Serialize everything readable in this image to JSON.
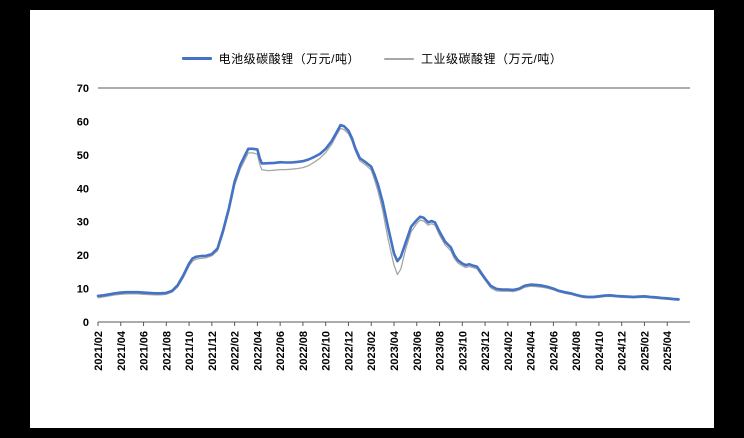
{
  "chart_data": {
    "type": "line",
    "title": "",
    "xlabel": "",
    "ylabel": "",
    "grid": false,
    "legend_position": "top",
    "ylim": [
      0,
      70
    ],
    "yticks": [
      0,
      10,
      20,
      30,
      40,
      50,
      60,
      70
    ],
    "xlim": [
      0,
      52
    ],
    "xtick_positions": [
      0,
      2,
      4,
      6,
      8,
      10,
      12,
      14,
      16,
      18,
      20,
      22,
      24,
      26,
      28,
      30,
      32,
      34,
      36,
      38,
      40,
      42,
      44,
      46,
      48,
      50
    ],
    "xtick_labels": [
      "2021/02",
      "2021/04",
      "2021/06",
      "2021/08",
      "2021/10",
      "2021/12",
      "2022/02",
      "2022/04",
      "2022/06",
      "2022/08",
      "2022/10",
      "2022/12",
      "2023/02",
      "2023/04",
      "2023/06",
      "2023/08",
      "2023/10",
      "2023/12",
      "2024/02",
      "2024/04",
      "2024/06",
      "2024/08",
      "2024/10",
      "2024/12",
      "2025/02",
      "2025/04"
    ],
    "x_unit": "months_since_2021_02",
    "y_unit": "万元/吨",
    "series": [
      {
        "name": "电池级碳酸锂（万元/吨）",
        "color": "#4472c4",
        "width": 2.6,
        "points": [
          [
            0,
            7.8
          ],
          [
            0.5,
            8.0
          ],
          [
            1,
            8.3
          ],
          [
            1.5,
            8.6
          ],
          [
            2,
            8.8
          ],
          [
            2.5,
            8.9
          ],
          [
            3,
            8.9
          ],
          [
            3.5,
            8.9
          ],
          [
            4,
            8.8
          ],
          [
            4.5,
            8.7
          ],
          [
            5,
            8.6
          ],
          [
            5.5,
            8.6
          ],
          [
            6,
            8.7
          ],
          [
            6.5,
            9.3
          ],
          [
            7,
            11.0
          ],
          [
            7.5,
            14.0
          ],
          [
            8,
            17.5
          ],
          [
            8.3,
            19.0
          ],
          [
            8.6,
            19.5
          ],
          [
            9,
            19.7
          ],
          [
            9.5,
            19.8
          ],
          [
            10,
            20.3
          ],
          [
            10.5,
            22.0
          ],
          [
            11,
            27.5
          ],
          [
            11.5,
            34.0
          ],
          [
            12,
            42.0
          ],
          [
            12.5,
            47.0
          ],
          [
            13,
            50.5
          ],
          [
            13.2,
            51.8
          ],
          [
            13.6,
            51.8
          ],
          [
            14,
            51.6
          ],
          [
            14.2,
            49.0
          ],
          [
            14.4,
            47.4
          ],
          [
            15,
            47.5
          ],
          [
            15.5,
            47.6
          ],
          [
            16,
            47.8
          ],
          [
            16.5,
            47.7
          ],
          [
            17,
            47.7
          ],
          [
            17.5,
            47.9
          ],
          [
            18,
            48.1
          ],
          [
            18.5,
            48.6
          ],
          [
            19,
            49.4
          ],
          [
            19.5,
            50.3
          ],
          [
            20,
            51.8
          ],
          [
            20.5,
            54.0
          ],
          [
            21,
            57.0
          ],
          [
            21.3,
            58.9
          ],
          [
            21.6,
            58.6
          ],
          [
            22,
            57.2
          ],
          [
            22.3,
            55.0
          ],
          [
            22.6,
            52.0
          ],
          [
            23,
            49.0
          ],
          [
            23.5,
            47.8
          ],
          [
            24,
            46.5
          ],
          [
            24.3,
            44.0
          ],
          [
            24.6,
            41.0
          ],
          [
            25,
            36.0
          ],
          [
            25.5,
            28.0
          ],
          [
            26,
            20.5
          ],
          [
            26.3,
            18.2
          ],
          [
            26.6,
            19.5
          ],
          [
            27,
            23.5
          ],
          [
            27.5,
            28.5
          ],
          [
            28,
            30.5
          ],
          [
            28.3,
            31.5
          ],
          [
            28.6,
            31.2
          ],
          [
            29,
            29.8
          ],
          [
            29.3,
            30.2
          ],
          [
            29.6,
            29.8
          ],
          [
            30,
            27.0
          ],
          [
            30.5,
            24.0
          ],
          [
            31,
            22.3
          ],
          [
            31.3,
            20.0
          ],
          [
            31.6,
            18.5
          ],
          [
            32,
            17.5
          ],
          [
            32.3,
            17.0
          ],
          [
            32.6,
            17.3
          ],
          [
            33,
            16.8
          ],
          [
            33.3,
            16.5
          ],
          [
            33.6,
            15.0
          ],
          [
            34,
            13.0
          ],
          [
            34.5,
            10.8
          ],
          [
            35,
            9.9
          ],
          [
            35.5,
            9.7
          ],
          [
            36,
            9.7
          ],
          [
            36.5,
            9.6
          ],
          [
            37,
            10.0
          ],
          [
            37.5,
            10.9
          ],
          [
            38,
            11.2
          ],
          [
            38.5,
            11.1
          ],
          [
            39,
            10.9
          ],
          [
            39.5,
            10.5
          ],
          [
            40,
            10.0
          ],
          [
            40.5,
            9.3
          ],
          [
            41,
            8.9
          ],
          [
            41.5,
            8.6
          ],
          [
            42,
            8.1
          ],
          [
            42.5,
            7.7
          ],
          [
            43,
            7.5
          ],
          [
            43.5,
            7.5
          ],
          [
            44,
            7.7
          ],
          [
            44.5,
            7.9
          ],
          [
            45,
            8.0
          ],
          [
            45.5,
            7.8
          ],
          [
            46,
            7.7
          ],
          [
            46.5,
            7.6
          ],
          [
            47,
            7.5
          ],
          [
            47.5,
            7.6
          ],
          [
            48,
            7.7
          ],
          [
            48.5,
            7.5
          ],
          [
            49,
            7.4
          ],
          [
            49.5,
            7.2
          ],
          [
            50,
            7.1
          ],
          [
            50.5,
            6.9
          ],
          [
            51,
            6.8
          ]
        ]
      },
      {
        "name": "工业级碳酸锂（万元/吨）",
        "color": "#a6a6a6",
        "width": 1.3,
        "points": [
          [
            0,
            7.2
          ],
          [
            0.5,
            7.5
          ],
          [
            1,
            7.8
          ],
          [
            1.5,
            8.1
          ],
          [
            2,
            8.3
          ],
          [
            2.5,
            8.4
          ],
          [
            3,
            8.4
          ],
          [
            3.5,
            8.4
          ],
          [
            4,
            8.3
          ],
          [
            4.5,
            8.2
          ],
          [
            5,
            8.1
          ],
          [
            5.5,
            8.1
          ],
          [
            6,
            8.3
          ],
          [
            6.5,
            8.9
          ],
          [
            7,
            10.5
          ],
          [
            7.5,
            13.3
          ],
          [
            8,
            16.8
          ],
          [
            8.3,
            18.2
          ],
          [
            8.6,
            18.8
          ],
          [
            9,
            19.0
          ],
          [
            9.5,
            19.2
          ],
          [
            10,
            19.8
          ],
          [
            10.5,
            21.3
          ],
          [
            11,
            26.5
          ],
          [
            11.5,
            33.0
          ],
          [
            12,
            40.8
          ],
          [
            12.5,
            45.8
          ],
          [
            13,
            49.2
          ],
          [
            13.2,
            50.6
          ],
          [
            13.6,
            50.6
          ],
          [
            14,
            50.2
          ],
          [
            14.2,
            47.2
          ],
          [
            14.4,
            45.5
          ],
          [
            15,
            45.3
          ],
          [
            15.5,
            45.4
          ],
          [
            16,
            45.6
          ],
          [
            16.5,
            45.6
          ],
          [
            17,
            45.7
          ],
          [
            17.5,
            45.9
          ],
          [
            18,
            46.2
          ],
          [
            18.5,
            46.8
          ],
          [
            19,
            47.8
          ],
          [
            19.5,
            49.0
          ],
          [
            20,
            50.7
          ],
          [
            20.5,
            53.0
          ],
          [
            21,
            56.2
          ],
          [
            21.3,
            57.9
          ],
          [
            21.6,
            57.6
          ],
          [
            22,
            56.3
          ],
          [
            22.3,
            54.2
          ],
          [
            22.6,
            51.2
          ],
          [
            23,
            48.2
          ],
          [
            23.5,
            47.0
          ],
          [
            24,
            45.5
          ],
          [
            24.3,
            42.5
          ],
          [
            24.6,
            39.0
          ],
          [
            25,
            33.5
          ],
          [
            25.5,
            24.5
          ],
          [
            26,
            17.0
          ],
          [
            26.3,
            14.2
          ],
          [
            26.6,
            15.8
          ],
          [
            27,
            21.5
          ],
          [
            27.5,
            27.0
          ],
          [
            28,
            29.5
          ],
          [
            28.3,
            30.5
          ],
          [
            28.6,
            30.2
          ],
          [
            29,
            29.0
          ],
          [
            29.3,
            29.4
          ],
          [
            29.6,
            29.0
          ],
          [
            30,
            26.0
          ],
          [
            30.5,
            23.0
          ],
          [
            31,
            21.3
          ],
          [
            31.3,
            19.0
          ],
          [
            31.6,
            17.7
          ],
          [
            32,
            16.8
          ],
          [
            32.3,
            16.3
          ],
          [
            32.6,
            16.6
          ],
          [
            33,
            16.2
          ],
          [
            33.3,
            15.9
          ],
          [
            33.6,
            14.4
          ],
          [
            34,
            12.5
          ],
          [
            34.5,
            10.2
          ],
          [
            35,
            9.3
          ],
          [
            35.5,
            9.2
          ],
          [
            36,
            9.2
          ],
          [
            36.5,
            9.1
          ],
          [
            37,
            9.6
          ],
          [
            37.5,
            10.4
          ],
          [
            38,
            10.7
          ],
          [
            38.5,
            10.6
          ],
          [
            39,
            10.4
          ],
          [
            39.5,
            10.1
          ],
          [
            40,
            9.6
          ],
          [
            40.5,
            9.0
          ],
          [
            41,
            8.6
          ],
          [
            41.5,
            8.3
          ],
          [
            42,
            7.8
          ],
          [
            42.5,
            7.4
          ],
          [
            43,
            7.2
          ],
          [
            43.5,
            7.2
          ],
          [
            44,
            7.4
          ],
          [
            44.5,
            7.6
          ],
          [
            45,
            7.7
          ],
          [
            45.5,
            7.5
          ],
          [
            46,
            7.4
          ],
          [
            46.5,
            7.3
          ],
          [
            47,
            7.2
          ],
          [
            47.5,
            7.3
          ],
          [
            48,
            7.4
          ],
          [
            48.5,
            7.2
          ],
          [
            49,
            7.1
          ],
          [
            49.5,
            6.9
          ],
          [
            50,
            6.8
          ],
          [
            50.5,
            6.6
          ],
          [
            51,
            6.5
          ]
        ]
      }
    ],
    "axis_color": "#595959"
  }
}
